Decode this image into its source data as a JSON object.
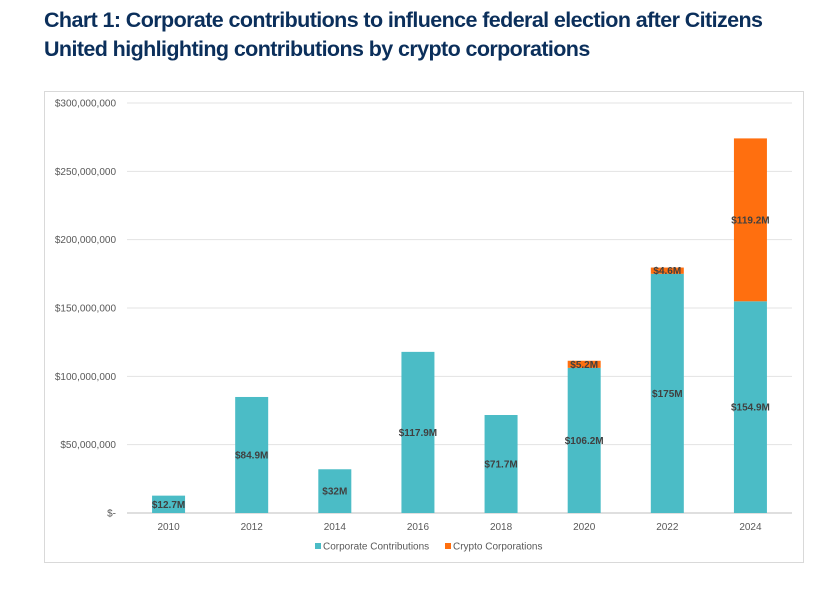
{
  "title": "Chart 1: Corporate contributions to influence federal election after Citizens United highlighting contributions by crypto corporations",
  "chart_data": {
    "type": "bar",
    "stacked": true,
    "categories": [
      "2010",
      "2012",
      "2014",
      "2016",
      "2018",
      "2020",
      "2022",
      "2024"
    ],
    "series": [
      {
        "name": "Corporate Contributions",
        "color": "#4bbcc6",
        "values": [
          12700000,
          84900000,
          32000000,
          117900000,
          71700000,
          106200000,
          175000000,
          154900000
        ],
        "labels": [
          "$12.7M",
          "$84.9M",
          "$32M",
          "$117.9M",
          "$71.7M",
          "$106.2M",
          "$175M",
          "$154.9M"
        ]
      },
      {
        "name": "Crypto Corporations",
        "color": "#ff6f0f",
        "values": [
          0,
          0,
          0,
          0,
          0,
          5200000,
          4600000,
          119200000
        ],
        "labels": [
          "",
          "",
          "",
          "",
          "",
          "$5.2M",
          "$4.6M",
          "$119.2M"
        ]
      }
    ],
    "yticks": [
      {
        "value": 0,
        "label": "$-"
      },
      {
        "value": 50000000,
        "label": "$50,000,000"
      },
      {
        "value": 100000000,
        "label": "$100,000,000"
      },
      {
        "value": 150000000,
        "label": "$150,000,000"
      },
      {
        "value": 200000000,
        "label": "$200,000,000"
      },
      {
        "value": 250000000,
        "label": "$250,000,000"
      },
      {
        "value": 300000000,
        "label": "$300,000,000"
      }
    ],
    "ylim": [
      0,
      300000000
    ],
    "grid": true,
    "legend_position": "bottom-center"
  }
}
